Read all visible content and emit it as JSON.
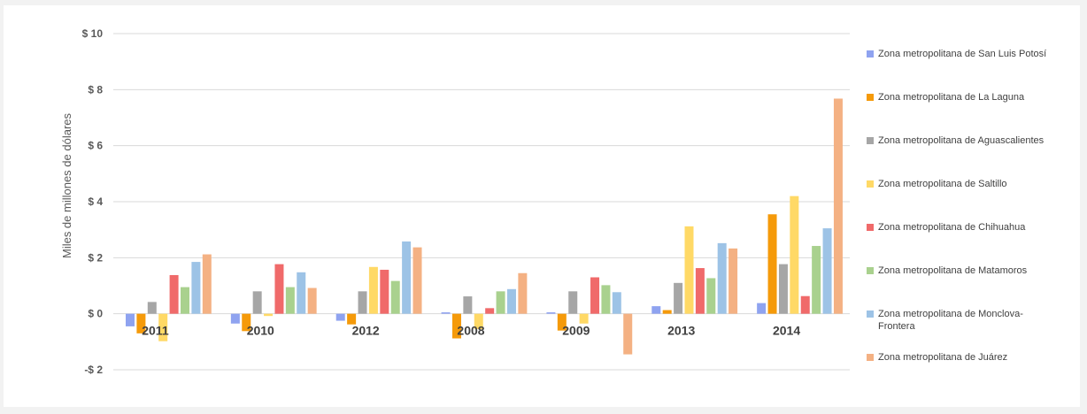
{
  "chart_data": {
    "type": "bar",
    "ylabel": "Miles de millones de dólares",
    "ylim": [
      -2,
      10
    ],
    "yticks": [
      -2,
      0,
      2,
      4,
      6,
      8,
      10
    ],
    "ytick_labels": [
      "-$ 2",
      "$ 0",
      "$ 2",
      "$ 4",
      "$ 6",
      "$ 8",
      "$ 10"
    ],
    "grid": true,
    "legend_position": "right",
    "categories": [
      "2011",
      "2010",
      "2012",
      "2008",
      "2009",
      "2013",
      "2014"
    ],
    "series": [
      {
        "name": "Zona metropolitana de San Luis Potosí",
        "color": "#8fa3f0",
        "values": [
          -0.45,
          -0.35,
          -0.25,
          0.05,
          0.05,
          0.27,
          0.38
        ]
      },
      {
        "name": "Zona metropolitana de La Laguna",
        "color": "#f59a0a",
        "values": [
          -0.7,
          -0.62,
          -0.38,
          -0.88,
          -0.6,
          0.13,
          3.55
        ]
      },
      {
        "name": "Zona metropolitana de Aguascalientes",
        "color": "#a6a6a6",
        "values": [
          0.42,
          0.8,
          0.8,
          0.62,
          0.8,
          1.1,
          1.77
        ]
      },
      {
        "name": "Zona metropolitana de Saltillo",
        "color": "#ffd966",
        "values": [
          -0.98,
          -0.08,
          1.67,
          -0.55,
          -0.35,
          3.12,
          4.2
        ]
      },
      {
        "name": "Zona metropolitana de Chihuahua",
        "color": "#f06a6a",
        "values": [
          1.38,
          1.77,
          1.57,
          0.2,
          1.3,
          1.63,
          0.63
        ]
      },
      {
        "name": "Zona metropolitana de Matamoros",
        "color": "#a9d18e",
        "values": [
          0.95,
          0.95,
          1.17,
          0.8,
          1.02,
          1.27,
          2.42
        ]
      },
      {
        "name": "Zona metropolitana de Monclova-Frontera",
        "color": "#9dc3e6",
        "values": [
          1.85,
          1.48,
          2.58,
          0.88,
          0.77,
          2.52,
          3.05
        ]
      },
      {
        "name": "Zona metropolitana de Juárez",
        "color": "#f4b183",
        "values": [
          2.12,
          0.92,
          2.37,
          1.45,
          -1.45,
          2.33,
          7.68
        ]
      }
    ]
  }
}
